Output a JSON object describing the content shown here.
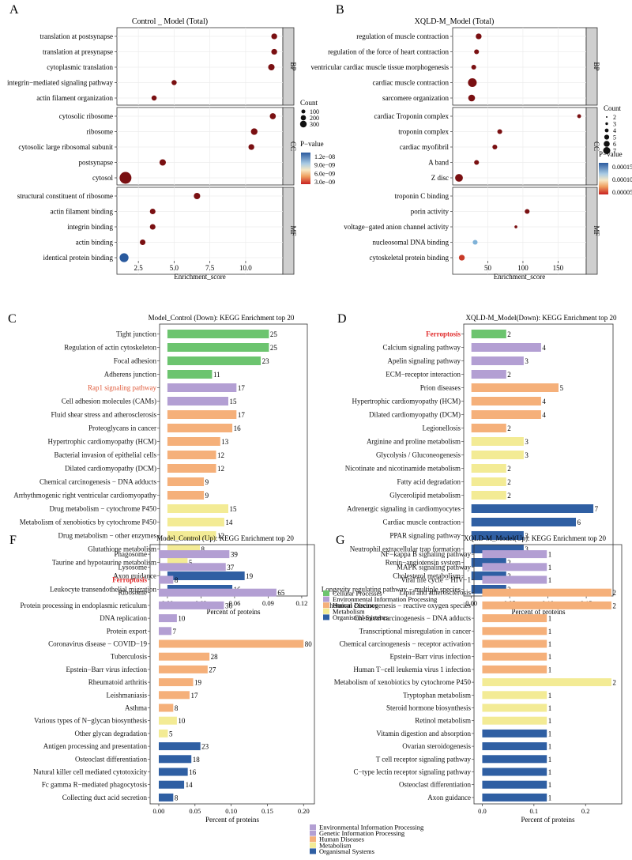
{
  "colors": {
    "cellular": "#6cc46f",
    "environmental": "#b39fd3",
    "human": "#f5b07a",
    "metabolism": "#f3eb95",
    "organismal": "#2f5fa3",
    "ferroptosis": "#e02a2a",
    "rap1": "#e05a3a",
    "strip": "#cfcfcf",
    "dotdark": "#7a1012"
  },
  "chart_data": [
    {
      "id": "A",
      "type": "scatter",
      "panel_label": "A",
      "title": "Control _ Model (Total)",
      "xlabel": "Enrichment_score",
      "xlim": [
        1,
        12.6
      ],
      "xticks": [
        2.5,
        5.0,
        7.5,
        10.0
      ],
      "xtick_labels": [
        "2.5",
        "5.0",
        "7.5",
        "10.0"
      ],
      "facets": [
        {
          "name": "BP",
          "terms": [
            "translation at postsynapse",
            "translation at presynapse",
            "cytoplasmic translation",
            "integrin−mediated signaling pathway",
            "actin filament organization"
          ],
          "x": [
            12.0,
            12.0,
            11.8,
            5.0,
            3.6
          ],
          "count": [
            40,
            40,
            55,
            25,
            25
          ],
          "p": [
            "3.0e-09",
            "3.0e-09",
            "3.0e-09",
            "3.0e-09",
            "3.0e-09"
          ]
        },
        {
          "name": "CC",
          "terms": [
            "cytosolic ribosome",
            "ribosome",
            "cytosolic large ribosomal subunit",
            "postsynapse",
            "cytosol"
          ],
          "x": [
            11.9,
            10.6,
            10.4,
            4.2,
            1.6
          ],
          "count": [
            45,
            60,
            40,
            55,
            320
          ],
          "p": [
            "3.0e-09",
            "3.0e-09",
            "3.0e-09",
            "3.0e-09",
            "3.0e-09"
          ]
        },
        {
          "name": "MF",
          "terms": [
            "structural constituent of ribosome",
            "actin filament binding",
            "integrin binding",
            "actin binding",
            "identical protein binding"
          ],
          "x": [
            6.6,
            3.5,
            3.5,
            2.8,
            1.5
          ],
          "count": [
            55,
            35,
            35,
            35,
            150
          ],
          "p": [
            "3.0e-09",
            "3.0e-09",
            "3.0e-09",
            "3.0e-09",
            "1.2e-08"
          ]
        }
      ],
      "size_legend": {
        "title": "Count",
        "values": [
          "100",
          "200",
          "300"
        ]
      },
      "color_legend": {
        "title": "P−value",
        "labels": [
          "1.2e−08",
          "9.0e−09",
          "6.0e−09",
          "3.0e−09"
        ]
      }
    },
    {
      "id": "B",
      "type": "scatter",
      "panel_label": "B",
      "title": "XQLD-M_Model (Total)",
      "xlabel": "Enrichment_score",
      "xlim": [
        0,
        190
      ],
      "xticks": [
        50,
        100,
        150
      ],
      "xtick_labels": [
        "50",
        "100",
        "150"
      ],
      "facets": [
        {
          "name": "BP",
          "terms": [
            "regulation of muscle contraction",
            "regulation of the force of heart contraction",
            "ventricular cardiac muscle tissue morphogenesis",
            "cardiac muscle contraction",
            "sarcomere organization"
          ],
          "x": [
            37,
            34,
            30,
            28,
            27
          ],
          "count": [
            4,
            3,
            3,
            7,
            5
          ],
          "p": [
            "3e-5",
            "3e-5",
            "3e-5",
            "3e-5",
            "3e-5"
          ]
        },
        {
          "name": "CC",
          "terms": [
            "cardiac Troponin complex",
            "troponin complex",
            "cardiac myofibril",
            "A band",
            "Z disc"
          ],
          "x": [
            180,
            67,
            60,
            34,
            9
          ],
          "count": [
            2,
            3,
            3,
            3,
            6
          ],
          "p": [
            "3e-5",
            "3e-5",
            "3e-5",
            "3e-5",
            "3e-5"
          ]
        },
        {
          "name": "MF",
          "terms": [
            "troponin C binding",
            "porin activity",
            "voltage−gated anion channel activity",
            "nucleosomal DNA binding",
            "cytoskeletal protein binding"
          ],
          "x": [
            null,
            106,
            90,
            32,
            13
          ],
          "count": [
            null,
            3,
            1,
            3,
            4
          ],
          "p": [
            null,
            "3e-5",
            "3e-5",
            "1.4e-4",
            "2e-5"
          ]
        }
      ],
      "size_legend": {
        "title": "Count",
        "values": [
          "2",
          "3",
          "4",
          "5",
          "6",
          "7"
        ]
      },
      "color_legend": {
        "title": "P−value",
        "labels": [
          "0.00015",
          "0.00010",
          "0.00005"
        ]
      }
    },
    {
      "id": "C",
      "type": "bar",
      "panel_label": "C",
      "title": "Model_Control (Down): KEGG Enrichment top 20",
      "xlabel": "Percent of proteins",
      "xlim": [
        -0.007,
        0.125
      ],
      "xticks": [
        0,
        0.03,
        0.06,
        0.09,
        0.12
      ],
      "xtick_labels": [
        "0.00",
        "0.03",
        "0.06",
        "0.09",
        "0.12"
      ],
      "categories": [
        "Tight junction",
        "Regulation of actin cytoskeleton",
        "Focal adhesion",
        "Adherens junction",
        "Rap1 signaling pathway",
        "Cell adhesion molecules (CAMs)",
        "Fluid shear stress and atherosclerosis",
        "Proteoglycans in cancer",
        "Hypertrophic cardiomyopathy (HCM)",
        "Bacterial invasion of epithelial cells",
        "Dilated cardiomyopathy (DCM)",
        "Chemical carcinogenesis − DNA adducts",
        "Arrhythmogenic right ventricular cardiomyopathy",
        "Drug metabolism − cytochrome P450",
        "Metabolism of xenobiotics by cytochrome P450",
        "Drug metabolism − other enzymes",
        "Glutathione metabolism",
        "Taurine and hypotaurine metabolism",
        "Axon guidance",
        "Leukocyte transendothelial migration"
      ],
      "values": [
        0.0907,
        0.0907,
        0.0834,
        0.0399,
        0.0617,
        0.0544,
        0.0617,
        0.058,
        0.0472,
        0.0435,
        0.0435,
        0.0326,
        0.0326,
        0.0544,
        0.0508,
        0.0435,
        0.029,
        0.018,
        0.069,
        0.058
      ],
      "labels": [
        "25",
        "25",
        "23",
        "11",
        "17",
        "15",
        "17",
        "16",
        "13",
        "12",
        "12",
        "9",
        "9",
        "15",
        "14",
        "12",
        "8",
        "5",
        "19",
        "16"
      ],
      "groups": [
        "cellular",
        "cellular",
        "cellular",
        "cellular",
        "environmental",
        "environmental",
        "human",
        "human",
        "human",
        "human",
        "human",
        "human",
        "human",
        "metabolism",
        "metabolism",
        "metabolism",
        "metabolism",
        "metabolism",
        "organismal",
        "organismal"
      ],
      "highlight": [
        4
      ]
    },
    {
      "id": "D",
      "type": "bar",
      "panel_label": "D",
      "title": "XQLD-M_Model(Down): KEGG Enrichment top 20",
      "xlabel": "Percent of proteins",
      "xlim": [
        -0.01,
        0.185
      ],
      "xticks": [
        0,
        0.05,
        0.1,
        0.15
      ],
      "xtick_labels": [
        "0.00",
        "0.05",
        "0.10",
        "0.15"
      ],
      "categories": [
        "Ferroptosis",
        "Calcium signaling pathway",
        "Apelin signaling pathway",
        "ECM−receptor interaction",
        "Prion diseases",
        "Hypertrophic cardiomyopathy (HCM)",
        "Dilated cardiomyopathy (DCM)",
        "Legionellosis",
        "Arginine and proline metabolism",
        "Glycolysis / Gluconeogenesis",
        "Nicotinate and nicotinamide metabolism",
        "Fatty acid degradation",
        "Glycerolipid metabolism",
        "Adrenergic signaling in cardiomyocytes",
        "Cardiac muscle contraction",
        "PPAR signaling pathway",
        "Neutrophil extracellular trap formation",
        "Renin−angiotensin system",
        "Cholesterol metabolism",
        "Longevity regulating pathway − multiple species"
      ],
      "values": [
        0.0455,
        0.091,
        0.0683,
        0.0455,
        0.1138,
        0.091,
        0.091,
        0.0455,
        0.0683,
        0.0683,
        0.0455,
        0.0455,
        0.0455,
        0.1593,
        0.1365,
        0.0683,
        0.0683,
        0.0455,
        0.0455,
        0.0455
      ],
      "labels": [
        "2",
        "4",
        "3",
        "2",
        "5",
        "4",
        "4",
        "2",
        "3",
        "3",
        "2",
        "2",
        "2",
        "7",
        "6",
        "3",
        "3",
        "2",
        "2",
        "2"
      ],
      "groups": [
        "cellular",
        "environmental",
        "environmental",
        "environmental",
        "human",
        "human",
        "human",
        "human",
        "metabolism",
        "metabolism",
        "metabolism",
        "metabolism",
        "metabolism",
        "organismal",
        "organismal",
        "organismal",
        "organismal",
        "organismal",
        "organismal",
        "organismal"
      ],
      "highlight": [
        0
      ]
    },
    {
      "id": "F",
      "type": "bar",
      "panel_label": "F",
      "title": "Model_Control (Up): KEGG Enrichment top 20",
      "xlabel": "Percent of proteins",
      "xlim": [
        -0.012,
        0.215
      ],
      "xticks": [
        0,
        0.05,
        0.1,
        0.15,
        0.2
      ],
      "xtick_labels": [
        "0.00",
        "0.05",
        "0.10",
        "0.15",
        "0.20"
      ],
      "categories": [
        "Phagosome",
        "Lysosome",
        "Ferroptosis",
        "Ribosome",
        "Protein processing in endoplasmic reticulum",
        "DNA replication",
        "Protein export",
        "Coronavirus disease − COVID−19",
        "Tuberculosis",
        "Epstein−Barr virus infection",
        "Rheumatoid arthritis",
        "Leishmaniasis",
        "Asthma",
        "Various types of N−glycan biosynthesis",
        "Other glycan degradation",
        "Antigen processing and presentation",
        "Osteoclast differentiation",
        "Natural killer cell mediated cytotoxicity",
        "Fc gamma R−mediated phagocytosis",
        "Collecting duct acid secretion"
      ],
      "values": [
        0.0975,
        0.0925,
        0.02,
        0.1625,
        0.09,
        0.025,
        0.0175,
        0.2,
        0.07,
        0.0675,
        0.0475,
        0.0425,
        0.02,
        0.025,
        0.0125,
        0.0575,
        0.045,
        0.04,
        0.035,
        0.02
      ],
      "labels": [
        "39",
        "37",
        "8",
        "65",
        "36",
        "10",
        "7",
        "80",
        "28",
        "27",
        "19",
        "17",
        "8",
        "10",
        "5",
        "23",
        "18",
        "16",
        "14",
        "8"
      ],
      "groups": [
        "environmental",
        "environmental",
        "environmental",
        "genetic",
        "genetic",
        "genetic",
        "genetic",
        "human",
        "human",
        "human",
        "human",
        "human",
        "human",
        "metabolism",
        "metabolism",
        "organismal",
        "organismal",
        "organismal",
        "organismal",
        "organismal"
      ],
      "highlight": [
        2
      ]
    },
    {
      "id": "G",
      "type": "bar",
      "panel_label": "G",
      "title": "XQLD-M_Model(Up): KEGG Enrichment top 20",
      "xlabel": "Percent of proteins",
      "xlim": [
        -0.016,
        0.27
      ],
      "xticks": [
        0,
        0.1,
        0.2
      ],
      "xtick_labels": [
        "0.0",
        "0.1",
        "0.2"
      ],
      "categories": [
        "NF−kappa B signaling pathway",
        "MAPK signaling pathway",
        "Viral life cycle − HIV−1",
        "Lipid and atherosclerosis",
        "Chemical carcinogenesis − reactive oxygen species",
        "Chemical carcinogenesis − DNA adducts",
        "Transcriptional misregulation in cancer",
        "Chemical carcinogenesis − receptor activation",
        "Epstein−Barr virus infection",
        "Human T−cell leukemia virus 1 infection",
        "Metabolism of xenobiotics by cytochrome P450",
        "Tryptophan metabolism",
        "Steroid hormone biosynthesis",
        "Retinol metabolism",
        "Vitamin digestion and absorption",
        "Ovarian steroidogenesis",
        "T cell receptor signaling pathway",
        "C−type lectin receptor signaling pathway",
        "Osteoclast differentiation",
        "Axon guidance"
      ],
      "values": [
        0.125,
        0.125,
        0.125,
        0.25,
        0.25,
        0.125,
        0.125,
        0.125,
        0.125,
        0.125,
        0.25,
        0.125,
        0.125,
        0.125,
        0.125,
        0.125,
        0.125,
        0.125,
        0.125,
        0.125
      ],
      "labels": [
        "1",
        "1",
        "1",
        "2",
        "2",
        "1",
        "1",
        "1",
        "1",
        "1",
        "2",
        "1",
        "1",
        "1",
        "1",
        "1",
        "1",
        "1",
        "1",
        "1"
      ],
      "groups": [
        "environmental",
        "environmental",
        "genetic",
        "human",
        "human",
        "human",
        "human",
        "human",
        "human",
        "human",
        "metabolism",
        "metabolism",
        "metabolism",
        "metabolism",
        "organismal",
        "organismal",
        "organismal",
        "organismal",
        "organismal",
        "organismal"
      ],
      "highlight": []
    }
  ],
  "legend_top": {
    "items": [
      {
        "group": "cellular",
        "label": "Cellular Processes"
      },
      {
        "group": "environmental",
        "label": "Environmental Information Processing"
      },
      {
        "group": "human",
        "label": "Human Diseases"
      },
      {
        "group": "metabolism",
        "label": "Metabolism"
      },
      {
        "group": "organismal",
        "label": "Organismal Systems"
      }
    ]
  },
  "legend_bottom": {
    "items": [
      {
        "group": "environmental",
        "label": "Environmental Information Processing"
      },
      {
        "group": "genetic",
        "label": "Genetic Information Processing"
      },
      {
        "group": "human",
        "label": "Human Diseases"
      },
      {
        "group": "metabolism",
        "label": "Metabolism"
      },
      {
        "group": "organismal",
        "label": "Organismal Systems"
      }
    ]
  }
}
